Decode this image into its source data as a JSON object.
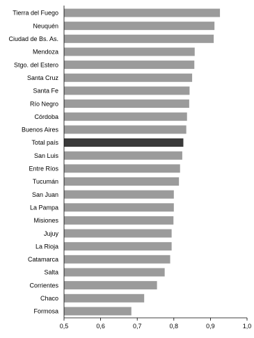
{
  "chart_data": {
    "type": "bar",
    "orientation": "horizontal",
    "categories": [
      "Tierra del Fuego",
      "Neuquén",
      "Ciudad de Bs. As.",
      "Mendoza",
      "Stgo. del Estero",
      "Santa Cruz",
      "Santa Fe",
      "Río Negro",
      "Córdoba",
      "Buenos Aires",
      "Total país",
      "San Luis",
      "Entre Ríos",
      "Tucumán",
      "San Juan",
      "La Pampa",
      "Misiones",
      "Jujuy",
      "La Rioja",
      "Catamarca",
      "Salta",
      "Corrientes",
      "Chaco",
      "Formosa"
    ],
    "values": [
      0.926,
      0.911,
      0.909,
      0.857,
      0.856,
      0.85,
      0.843,
      0.842,
      0.836,
      0.834,
      0.826,
      0.823,
      0.817,
      0.814,
      0.8,
      0.8,
      0.799,
      0.794,
      0.794,
      0.79,
      0.775,
      0.754,
      0.719,
      0.684
    ],
    "highlight_category": "Total país",
    "xlim": [
      0.5,
      1.0
    ],
    "xticks": [
      "0,5",
      "0,6",
      "0,7",
      "0,8",
      "0,9",
      "1,0"
    ],
    "xtick_values": [
      0.5,
      0.6,
      0.7,
      0.8,
      0.9,
      1.0
    ],
    "title": "",
    "xlabel": "",
    "ylabel": "",
    "grid": false,
    "colors": {
      "bar": "#9b9b9b",
      "highlight": "#3a3a3a",
      "axis": "#000000",
      "text": "#000000"
    }
  }
}
